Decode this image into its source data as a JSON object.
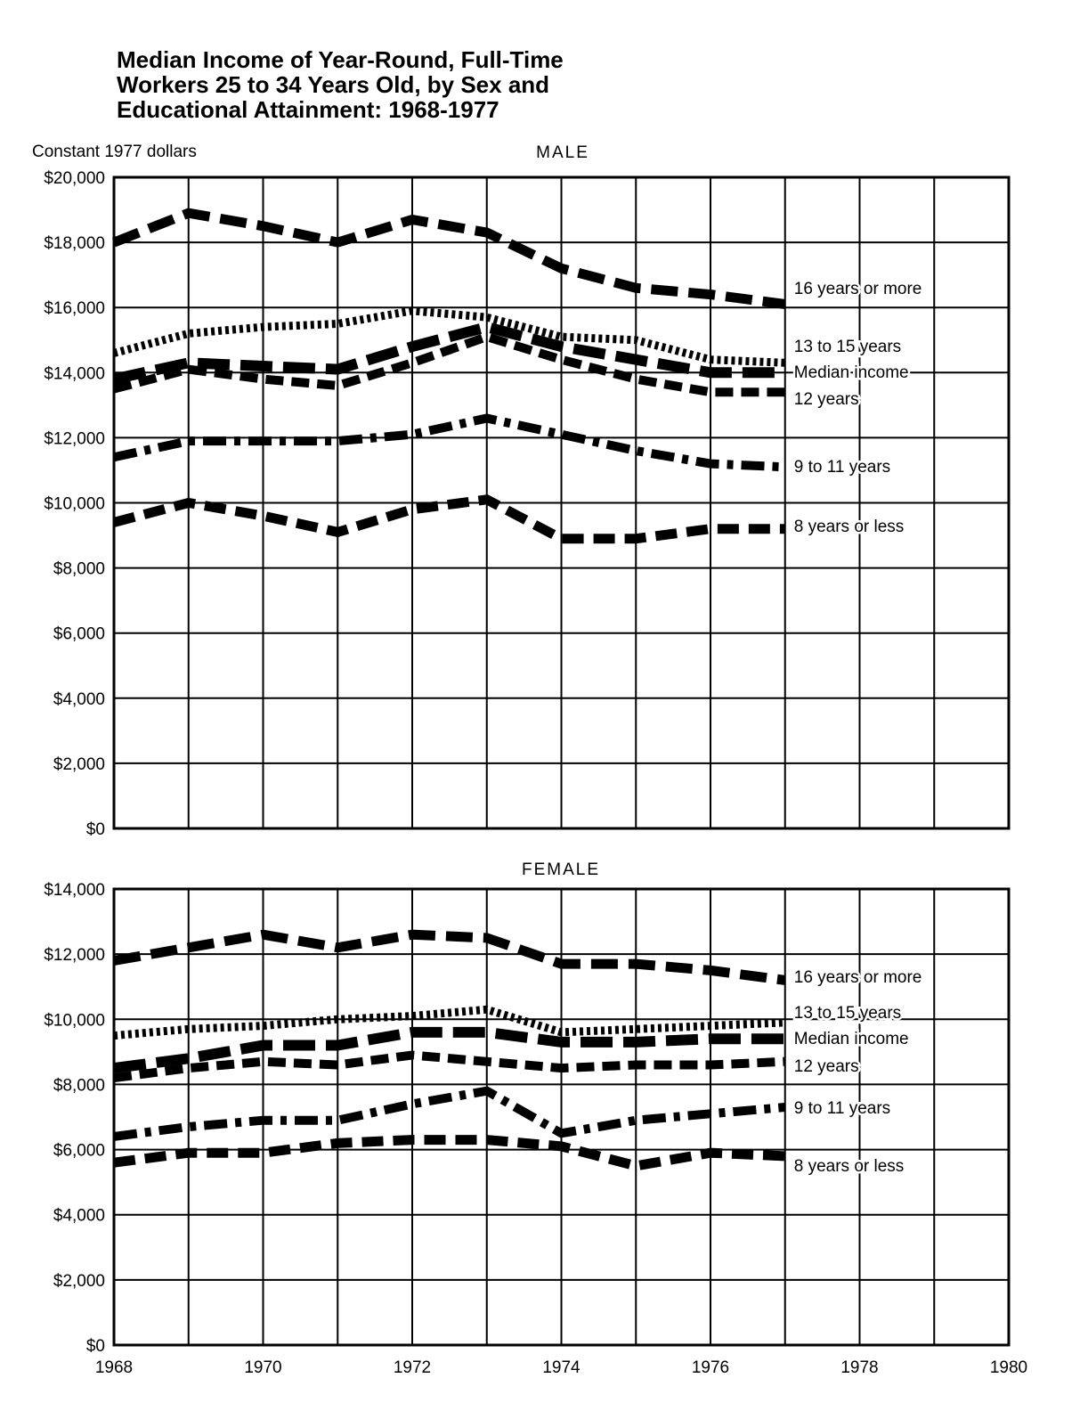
{
  "title_lines": [
    "Median Income of Year-Round, Full-Time",
    "Workers 25 to 34 Years Old, by Sex and",
    "Educational Attainment: 1968-1977"
  ],
  "unit_label": "Constant 1977 dollars",
  "x_ticks": [
    "1968",
    "1970",
    "1972",
    "1974",
    "1976",
    "1978",
    "1980"
  ],
  "chart_data": [
    {
      "type": "line",
      "panel": "MALE",
      "title": "MALE",
      "x": [
        1968,
        1969,
        1970,
        1971,
        1972,
        1973,
        1974,
        1975,
        1976,
        1977
      ],
      "xlim": [
        1968,
        1980
      ],
      "ylim": [
        0,
        20000
      ],
      "y_ticks": [
        "$0",
        "$2,000",
        "$4,000",
        "$6,000",
        "$8,000",
        "$10,000",
        "$12,000",
        "$14,000",
        "$16,000",
        "$18,000",
        "$20,000"
      ],
      "grid": true,
      "series": [
        {
          "name": "16 years or more",
          "style": "long-dash",
          "values": [
            18000,
            18900,
            18500,
            18000,
            18700,
            18300,
            17200,
            16600,
            16400,
            16100
          ]
        },
        {
          "name": "13 to 15 years",
          "style": "dotted",
          "values": [
            14600,
            15200,
            15400,
            15500,
            15900,
            15700,
            15100,
            15000,
            14400,
            14300
          ]
        },
        {
          "name": "Median income",
          "style": "long-dash-bold",
          "values": [
            13800,
            14300,
            14200,
            14100,
            14800,
            15400,
            14800,
            14400,
            14000,
            14000
          ]
        },
        {
          "name": "12 years",
          "style": "short-dash",
          "values": [
            13500,
            14100,
            13800,
            13600,
            14300,
            15100,
            14400,
            13800,
            13400,
            13400
          ]
        },
        {
          "name": "9 to 11 years",
          "style": "dash-dot",
          "values": [
            11400,
            11900,
            11900,
            11900,
            12100,
            12600,
            12100,
            11600,
            11200,
            11100
          ]
        },
        {
          "name": "8 years or less",
          "style": "medium-dash",
          "values": [
            9400,
            10000,
            9600,
            9100,
            9800,
            10100,
            8900,
            8900,
            9200,
            9200
          ]
        }
      ]
    },
    {
      "type": "line",
      "panel": "FEMALE",
      "title": "FEMALE",
      "x": [
        1968,
        1969,
        1970,
        1971,
        1972,
        1973,
        1974,
        1975,
        1976,
        1977
      ],
      "xlim": [
        1968,
        1980
      ],
      "ylim": [
        0,
        14000
      ],
      "y_ticks": [
        "$0",
        "$2,000",
        "$4,000",
        "$6,000",
        "$8,000",
        "$10,000",
        "$12,000",
        "$14,000"
      ],
      "grid": true,
      "series": [
        {
          "name": "16 years or more",
          "style": "long-dash",
          "values": [
            11800,
            12200,
            12600,
            12200,
            12600,
            12500,
            11700,
            11700,
            11500,
            11200
          ]
        },
        {
          "name": "13 to 15 years",
          "style": "dotted",
          "values": [
            9500,
            9700,
            9800,
            10000,
            10100,
            10300,
            9600,
            9700,
            9800,
            9900
          ]
        },
        {
          "name": "Median income",
          "style": "long-dash-bold",
          "values": [
            8500,
            8800,
            9200,
            9200,
            9600,
            9600,
            9300,
            9300,
            9400,
            9400
          ]
        },
        {
          "name": "12 years",
          "style": "short-dash",
          "values": [
            8200,
            8500,
            8700,
            8600,
            8900,
            8700,
            8500,
            8600,
            8600,
            8700
          ]
        },
        {
          "name": "9 to 11 years",
          "style": "dash-dot",
          "values": [
            6400,
            6700,
            6900,
            6900,
            7400,
            7800,
            6500,
            6900,
            7100,
            7300
          ]
        },
        {
          "name": "8 years or less",
          "style": "medium-dash",
          "values": [
            5600,
            5900,
            5900,
            6200,
            6300,
            6300,
            6100,
            5500,
            5900,
            5800
          ]
        }
      ]
    }
  ]
}
